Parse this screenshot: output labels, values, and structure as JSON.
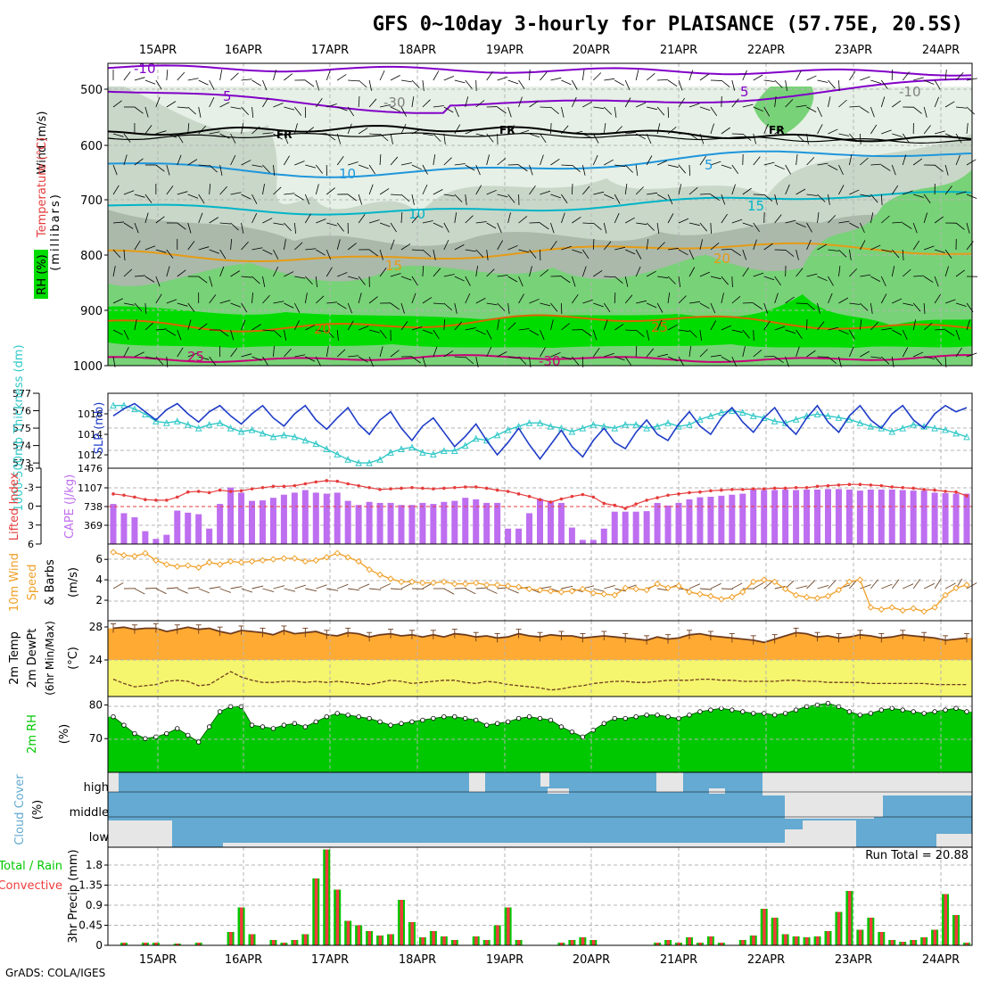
{
  "title": "GFS 0~10day 3-hourly for PLAISANCE (57.75E, 20.5S)",
  "credit": "GrADS: COLA/IGES",
  "colors": {
    "frame": "#000000",
    "grid": "#b4b4b4",
    "rh_light": "#e6f0e6",
    "rh_mid": "#c8d7c8",
    "rh_gray": "#aab9aa",
    "rh_green": "#78d278",
    "rh_bright": "#00dc00",
    "temp_purple": "#8200c8",
    "temp_blue": "#1e96dc",
    "temp_cyan": "#00b4c8",
    "temp_orange": "#e69b14",
    "temp_dark_orange": "#dc6400",
    "temp_magenta": "#c80078",
    "freezing": "#000000",
    "thickness": "#32c8c8",
    "slp": "#1e3cc8",
    "lifted": "#e63c3c",
    "cape": "#be6ef0",
    "wind": "#f0a028",
    "temp_fill": "#ffaa32",
    "dew_fill": "#f5f56e",
    "rh2m": "#00c800",
    "cloud_blue": "#64aad2",
    "cloud_white": "#e6e6e6",
    "precip_total": "#00c800",
    "precip_conv": "#f03c3c"
  },
  "x_axis": {
    "top_labels": [
      "15APR",
      "16APR",
      "17APR",
      "18APR",
      "19APR",
      "20APR",
      "21APR",
      "22APR",
      "23APR",
      "24APR"
    ],
    "bottom_labels": [
      "15APR",
      "16APR",
      "17APR",
      "18APR",
      "19APR",
      "20APR",
      "21APR",
      "22APR",
      "23APR",
      "24APR"
    ]
  },
  "panels": {
    "upper": {
      "ylabel": "(millibars)",
      "legend_wind": "Wind (m/s)",
      "legend_temp": "Temperature (°C)",
      "legend_rh": "RH (%)",
      "yticks": [
        "500",
        "600",
        "700",
        "800",
        "900",
        "1000"
      ],
      "contour_labels": [
        "-10",
        "5",
        "FR",
        "FR",
        "FR",
        "5",
        "5",
        "10",
        "10",
        "15",
        "15",
        "20",
        "20",
        "25",
        "25",
        "-30",
        "-30",
        "-10"
      ]
    },
    "slp": {
      "ylabel_left": "1000-500mb Thickness (dm)",
      "ylabel_right": "SLP (mb)",
      "left_ticks": [
        "577",
        "576",
        "575",
        "574",
        "573"
      ],
      "right_ticks": [
        "1016",
        "1014",
        "1012"
      ],
      "extra_tick": "1476"
    },
    "cape": {
      "ylabel_left": "Lifted Index",
      "ylabel_right": "CAPE (J/kg)",
      "left_ticks": [
        "-6",
        "-3",
        "0",
        "3",
        "6"
      ],
      "right_ticks": [
        "1107",
        "738",
        "369"
      ]
    },
    "wind": {
      "ylabel": "10m Wind Speed & Barbs (m/s)",
      "ylabel_line1": "10m Wind",
      "ylabel_line2": "Speed",
      "ylabel_line3": "& Barbs",
      "ylabel_line4": "(m/s)",
      "ticks": [
        "6",
        "4",
        "2"
      ]
    },
    "temp": {
      "ylabel_line1": "2m Temp",
      "ylabel_line2": "2m DewPt",
      "ylabel_line3": "(6hr Min/Max)",
      "ylabel_line4": "(°C)",
      "ticks": [
        "28",
        "24"
      ]
    },
    "rh": {
      "ylabel_line1": "2m RH",
      "ylabel_line2": "(%)",
      "ticks": [
        "80",
        "70"
      ]
    },
    "cloud": {
      "ylabel_line1": "Cloud Cover",
      "ylabel_line2": "(%)",
      "levels": [
        "high",
        "middle",
        "low"
      ]
    },
    "precip": {
      "ylabel_line1": "Total / Rain",
      "ylabel_line2": "Convective",
      "ylabel_line3": "3hr Precip (mm)",
      "ticks": [
        "1.8",
        "1.35",
        "0.9",
        "0.45",
        "0"
      ],
      "run_total": "Run Total = 20.88"
    }
  },
  "chart_data": [
    {
      "type": "line",
      "name": "1000-500mb thickness & SLP",
      "series": [
        {
          "name": "SLP (mb)",
          "axis": "right",
          "values": [
            1015.8,
            1016.5,
            1017.0,
            1016.2,
            1015.4,
            1016.4,
            1017.0,
            1016.0,
            1015.2,
            1016.2,
            1016.8,
            1015.8,
            1015.0,
            1016.0,
            1016.8,
            1015.6,
            1014.8,
            1016.0,
            1016.8,
            1015.4,
            1014.5,
            1015.6,
            1016.6,
            1015.0,
            1014.0,
            1015.4,
            1016.2,
            1014.6,
            1013.4,
            1014.8,
            1015.6,
            1014.2,
            1012.8,
            1013.8,
            1015.0,
            1013.4,
            1012.0,
            1013.2,
            1014.6,
            1013.0,
            1011.6,
            1013.0,
            1014.4,
            1012.8,
            1011.8,
            1013.4,
            1014.6,
            1013.2,
            1012.6,
            1014.2,
            1015.4,
            1014.0,
            1013.4,
            1015.0,
            1016.2,
            1014.8,
            1014.0,
            1015.6,
            1016.6,
            1015.2,
            1014.2,
            1015.6,
            1016.6,
            1015.0,
            1014.0,
            1015.6,
            1016.8,
            1015.2,
            1014.2,
            1015.8,
            1016.8,
            1015.4,
            1014.6,
            1016.0,
            1016.8,
            1015.4,
            1014.6,
            1016.0,
            1016.8,
            1016.2,
            1016.6
          ]
        },
        {
          "name": "1000-500mb Thickness (dm)",
          "axis": "left",
          "values": [
            576.3,
            576.3,
            576.1,
            575.8,
            575.4,
            575.3,
            575.4,
            575.2,
            575.0,
            575.2,
            575.3,
            575.0,
            574.8,
            574.9,
            574.7,
            574.5,
            574.6,
            574.5,
            574.3,
            574.1,
            573.8,
            573.5,
            573.2,
            573.0,
            573.0,
            573.2,
            573.6,
            573.8,
            573.9,
            573.6,
            573.5,
            573.7,
            573.7,
            574.0,
            574.4,
            574.3,
            574.6,
            574.9,
            575.1,
            575.3,
            575.3,
            575.1,
            575.0,
            574.8,
            575.0,
            575.2,
            575.1,
            575.0,
            575.2,
            575.2,
            575.0,
            575.1,
            575.3,
            575.1,
            575.2,
            575.5,
            575.7,
            575.9,
            576.0,
            575.9,
            575.7,
            575.6,
            575.4,
            575.3,
            575.5,
            575.7,
            575.8,
            575.7,
            575.6,
            575.5,
            575.3,
            575.1,
            575.0,
            574.8,
            575.0,
            575.2,
            575.1,
            575.0,
            574.9,
            574.7,
            574.5
          ]
        }
      ],
      "ylim_left": [
        573,
        577
      ],
      "ylim_right": [
        1011,
        1018
      ]
    },
    {
      "type": "bar",
      "name": "CAPE & Lifted Index",
      "series": [
        {
          "name": "CAPE (J/kg)",
          "axis": "right",
          "values": [
            780,
            600,
            520,
            250,
            100,
            180,
            650,
            610,
            580,
            300,
            780,
            1100,
            1000,
            840,
            850,
            900,
            960,
            1000,
            1050,
            1000,
            980,
            1000,
            840,
            760,
            820,
            800,
            800,
            760,
            760,
            800,
            780,
            820,
            840,
            900,
            870,
            800,
            800,
            300,
            300,
            600,
            880,
            840,
            800,
            320,
            80,
            80,
            300,
            630,
            630,
            630,
            640,
            800,
            750,
            800,
            870,
            910,
            920,
            940,
            960,
            980,
            1060,
            1050,
            1050,
            1060,
            1050,
            1060,
            1060,
            1070,
            1070,
            1060,
            1040,
            1060,
            1060,
            1060,
            1050,
            1040,
            1040,
            1000,
            990,
            980,
            980
          ]
        },
        {
          "name": "Lifted Index",
          "axis": "left",
          "values": [
            -2.0,
            -1.8,
            -1.5,
            -1.1,
            -1.0,
            -1.0,
            -1.5,
            -2.3,
            -2.4,
            -2.2,
            -2.6,
            -2.4,
            -2.5,
            -2.8,
            -3.0,
            -3.2,
            -3.2,
            -3.3,
            -3.6,
            -3.9,
            -4.1,
            -4.0,
            -3.6,
            -3.3,
            -3.0,
            -2.7,
            -2.8,
            -2.9,
            -3.0,
            -2.9,
            -2.8,
            -2.9,
            -3.0,
            -3.1,
            -3.1,
            -2.9,
            -2.6,
            -2.4,
            -2.0,
            -1.6,
            -1.1,
            -0.7,
            -1.2,
            -1.6,
            -1.9,
            -1.5,
            -0.5,
            -0.2,
            0.3,
            -0.4,
            -1.0,
            -1.4,
            -1.8,
            -2.0,
            -2.2,
            -2.3,
            -2.5,
            -2.6,
            -2.7,
            -2.7,
            -2.8,
            -2.8,
            -2.9,
            -2.9,
            -3.0,
            -3.0,
            -3.2,
            -3.3,
            -3.4,
            -3.5,
            -3.5,
            -3.4,
            -3.3,
            -3.1,
            -3.0,
            -2.9,
            -2.7,
            -2.6,
            -2.4,
            -2.3,
            -1.7
          ]
        }
      ],
      "ylim_left": [
        6,
        -6
      ],
      "ylim_right": [
        0,
        1476
      ]
    },
    {
      "type": "line",
      "name": "10m Wind Speed",
      "series": [
        {
          "name": "10m wind speed (m/s)",
          "values": [
            6.7,
            6.4,
            6.3,
            6.6,
            5.9,
            5.5,
            5.3,
            5.4,
            5.2,
            5.7,
            5.5,
            5.8,
            5.7,
            5.8,
            5.9,
            6.0,
            6.1,
            6.1,
            5.8,
            5.9,
            6.2,
            6.6,
            6.2,
            5.8,
            5.0,
            4.5,
            4.1,
            3.8,
            3.8,
            3.7,
            3.7,
            3.8,
            3.6,
            3.6,
            3.7,
            3.5,
            3.5,
            3.4,
            3.3,
            3.1,
            3.0,
            2.9,
            2.8,
            2.9,
            3.1,
            2.7,
            2.6,
            2.5,
            3.2,
            3.1,
            3.0,
            3.6,
            3.2,
            3.4,
            2.8,
            2.6,
            2.4,
            2.1,
            2.3,
            2.8,
            3.8,
            4.0,
            3.8,
            3.1,
            2.5,
            2.3,
            2.2,
            2.4,
            3.0,
            3.8,
            4.0,
            1.3,
            1.1,
            1.3,
            1.0,
            1.2,
            0.9,
            1.3,
            2.5,
            3.2,
            3.5
          ]
        }
      ],
      "ylim": [
        0,
        7.5
      ]
    },
    {
      "type": "area",
      "name": "2m Temp & DewPt",
      "series": [
        {
          "name": "2m Temp",
          "values": [
            27.3,
            27.4,
            27.2,
            27.3,
            27.3,
            27.0,
            27.2,
            27.4,
            27.2,
            27.3,
            27.0,
            26.8,
            27.1,
            27.0,
            26.9,
            26.7,
            27.1,
            26.8,
            26.9,
            27.0,
            26.7,
            26.6,
            26.9,
            26.8,
            26.5,
            26.7,
            26.8,
            26.6,
            26.7,
            26.5,
            26.7,
            26.5,
            26.8,
            26.7,
            26.5,
            26.6,
            26.4,
            26.5,
            26.8,
            26.6,
            26.5,
            26.7,
            26.6,
            26.6,
            26.4,
            26.5,
            26.6,
            26.5,
            26.4,
            26.3,
            26.2,
            26.5,
            26.3,
            26.4,
            26.7,
            26.8,
            26.6,
            26.5,
            26.4,
            26.3,
            26.2,
            26.0,
            26.3,
            26.6,
            26.9,
            26.8,
            26.5,
            26.6,
            26.4,
            26.5,
            26.7,
            26.6,
            26.4,
            26.5,
            26.7,
            26.6,
            26.5,
            26.4,
            26.2,
            26.3,
            26.4
          ]
        },
        {
          "name": "2m DewPt",
          "values": [
            22.6,
            22.2,
            21.9,
            22.0,
            22.1,
            22.4,
            22.5,
            22.4,
            22.0,
            22.1,
            22.7,
            23.3,
            22.8,
            22.5,
            22.3,
            22.3,
            22.4,
            22.4,
            22.3,
            22.4,
            22.3,
            22.4,
            22.3,
            22.2,
            22.1,
            22.3,
            22.5,
            22.4,
            22.2,
            22.3,
            22.4,
            22.5,
            22.5,
            22.3,
            22.2,
            22.4,
            22.3,
            22.1,
            22.0,
            21.9,
            21.8,
            21.6,
            21.7,
            21.9,
            22.0,
            22.2,
            22.3,
            22.4,
            22.4,
            22.3,
            22.3,
            22.4,
            22.5,
            22.5,
            22.5,
            22.6,
            22.6,
            22.5,
            22.5,
            22.4,
            22.4,
            22.4,
            22.4,
            22.5,
            22.5,
            22.4,
            22.4,
            22.3,
            22.3,
            22.3,
            22.3,
            22.2,
            22.2,
            22.2,
            22.2,
            22.2,
            22.2,
            22.1,
            22.1,
            22.1,
            22.1
          ]
        }
      ],
      "ylim": [
        21,
        28
      ]
    },
    {
      "type": "area",
      "name": "2m RH",
      "series": [
        {
          "name": "2m RH (%)",
          "values": [
            76.5,
            74.0,
            71.5,
            70.0,
            70.5,
            71.5,
            73.0,
            71.0,
            69.0,
            73.5,
            78.0,
            79.5,
            79.5,
            74.0,
            73.5,
            73.0,
            74.0,
            74.5,
            73.5,
            75.0,
            76.5,
            77.5,
            77.0,
            76.5,
            76.0,
            75.0,
            74.0,
            74.5,
            75.0,
            75.5,
            76.0,
            76.5,
            76.5,
            76.0,
            75.5,
            74.0,
            74.5,
            75.0,
            76.0,
            76.5,
            76.0,
            75.5,
            73.5,
            72.0,
            70.5,
            72.5,
            74.5,
            76.0,
            76.0,
            76.5,
            77.0,
            77.0,
            76.5,
            76.0,
            77.0,
            78.0,
            78.5,
            79.0,
            78.5,
            78.0,
            77.5,
            77.5,
            77.0,
            77.5,
            78.5,
            79.5,
            80.0,
            80.5,
            79.5,
            78.0,
            77.0,
            77.5,
            78.5,
            79.0,
            78.5,
            78.0,
            77.5,
            78.0,
            78.5,
            79.0,
            78.0
          ]
        }
      ],
      "ylim": [
        60,
        82.5
      ]
    },
    {
      "type": "bar",
      "name": "3hr Precip",
      "series": [
        {
          "name": "Total",
          "values": [
            0,
            0.06,
            0,
            0.06,
            0.06,
            0,
            0.04,
            0,
            0.06,
            0,
            0,
            0.3,
            0.85,
            0.25,
            0,
            0.12,
            0.06,
            0.12,
            0.25,
            1.5,
            2.15,
            1.25,
            0.55,
            0.45,
            0.32,
            0.22,
            0.25,
            1.02,
            0.52,
            0.18,
            0.32,
            0.2,
            0.12,
            0,
            0.2,
            0.12,
            0.45,
            0.85,
            0.12,
            0,
            0,
            0,
            0.06,
            0.12,
            0.18,
            0.12,
            0,
            0,
            0,
            0,
            0,
            0.06,
            0.12,
            0.06,
            0.18,
            0.06,
            0.2,
            0.06,
            0,
            0.12,
            0.22,
            0.82,
            0.62,
            0.25,
            0.2,
            0.18,
            0.2,
            0.32,
            0.75,
            1.22,
            0.35,
            0.62,
            0.3,
            0.12,
            0.08,
            0.12,
            0.18,
            0.35,
            1.15,
            0.68,
            0.06
          ]
        },
        {
          "name": "Convective",
          "values": [
            0,
            0.06,
            0,
            0.06,
            0.06,
            0,
            0.04,
            0,
            0.06,
            0,
            0,
            0.3,
            0.85,
            0.25,
            0,
            0.12,
            0.06,
            0.12,
            0.25,
            1.5,
            2.15,
            1.25,
            0.55,
            0.45,
            0.32,
            0.22,
            0.25,
            1.02,
            0.52,
            0.18,
            0.32,
            0.2,
            0.12,
            0,
            0.2,
            0.12,
            0.45,
            0.85,
            0.12,
            0,
            0,
            0,
            0.06,
            0.12,
            0.18,
            0.12,
            0,
            0,
            0,
            0,
            0,
            0.06,
            0.12,
            0.06,
            0.18,
            0.06,
            0.2,
            0.06,
            0,
            0.12,
            0.22,
            0.82,
            0.62,
            0.25,
            0.2,
            0.18,
            0.2,
            0.32,
            0.75,
            1.22,
            0.35,
            0.62,
            0.3,
            0.12,
            0.08,
            0.12,
            0.18,
            0.35,
            1.15,
            0.68,
            0.06
          ]
        }
      ],
      "ylim": [
        0,
        2.2
      ]
    }
  ]
}
